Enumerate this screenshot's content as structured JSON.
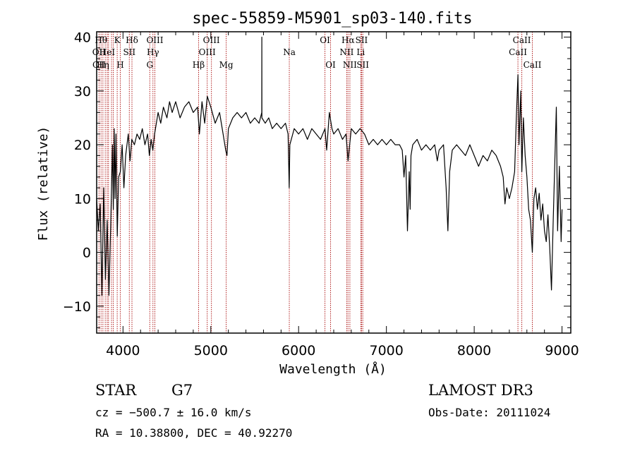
{
  "chart_data": {
    "type": "line",
    "title": "spec-55859-M5901_sp03-140.fits",
    "xlabel": "Wavelength (Å)",
    "ylabel": "Flux (relative)",
    "xlim": [
      3700,
      9100
    ],
    "ylim": [
      -15,
      41
    ],
    "xticks": [
      4000,
      5000,
      6000,
      7000,
      8000,
      9000
    ],
    "yticks": [
      -10,
      0,
      10,
      20,
      30,
      40
    ],
    "ytick_labels": [
      "−10",
      "0",
      "10",
      "20",
      "30",
      "40"
    ],
    "series": [
      {
        "name": "flux",
        "points": [
          [
            3700,
            10
          ],
          [
            3720,
            4
          ],
          [
            3740,
            9
          ],
          [
            3760,
            -8
          ],
          [
            3780,
            12
          ],
          [
            3800,
            -5
          ],
          [
            3820,
            6
          ],
          [
            3840,
            -8
          ],
          [
            3860,
            5
          ],
          [
            3880,
            20
          ],
          [
            3890,
            8
          ],
          [
            3900,
            23
          ],
          [
            3910,
            10
          ],
          [
            3920,
            22
          ],
          [
            3935,
            3
          ],
          [
            3950,
            14
          ],
          [
            3970,
            15
          ],
          [
            3990,
            20
          ],
          [
            4010,
            12
          ],
          [
            4030,
            18
          ],
          [
            4060,
            22
          ],
          [
            4080,
            17
          ],
          [
            4100,
            21
          ],
          [
            4130,
            20
          ],
          [
            4160,
            22
          ],
          [
            4190,
            21
          ],
          [
            4220,
            23
          ],
          [
            4250,
            20
          ],
          [
            4280,
            22
          ],
          [
            4300,
            18
          ],
          [
            4320,
            21
          ],
          [
            4340,
            19
          ],
          [
            4360,
            22
          ],
          [
            4380,
            24
          ],
          [
            4400,
            26
          ],
          [
            4430,
            24
          ],
          [
            4460,
            27
          ],
          [
            4500,
            25
          ],
          [
            4530,
            28
          ],
          [
            4560,
            26
          ],
          [
            4600,
            28
          ],
          [
            4650,
            25
          ],
          [
            4700,
            27
          ],
          [
            4750,
            28
          ],
          [
            4800,
            26
          ],
          [
            4850,
            27
          ],
          [
            4870,
            22
          ],
          [
            4900,
            28
          ],
          [
            4930,
            24
          ],
          [
            4960,
            29
          ],
          [
            5000,
            27
          ],
          [
            5050,
            24
          ],
          [
            5100,
            26
          ],
          [
            5140,
            22
          ],
          [
            5170,
            19
          ],
          [
            5184,
            18
          ],
          [
            5200,
            23
          ],
          [
            5250,
            25
          ],
          [
            5300,
            26
          ],
          [
            5350,
            25
          ],
          [
            5400,
            26
          ],
          [
            5450,
            24
          ],
          [
            5500,
            25
          ],
          [
            5550,
            24
          ],
          [
            5580,
            26
          ],
          [
            5581,
            40
          ],
          [
            5582,
            25
          ],
          [
            5620,
            24
          ],
          [
            5660,
            25
          ],
          [
            5700,
            23
          ],
          [
            5750,
            24
          ],
          [
            5800,
            23
          ],
          [
            5850,
            24
          ],
          [
            5880,
            22
          ],
          [
            5893,
            12
          ],
          [
            5900,
            20
          ],
          [
            5950,
            23
          ],
          [
            6000,
            22
          ],
          [
            6050,
            23
          ],
          [
            6100,
            21
          ],
          [
            6150,
            23
          ],
          [
            6200,
            22
          ],
          [
            6250,
            21
          ],
          [
            6300,
            23
          ],
          [
            6320,
            19
          ],
          [
            6350,
            26
          ],
          [
            6380,
            23
          ],
          [
            6400,
            22
          ],
          [
            6450,
            23
          ],
          [
            6500,
            21
          ],
          [
            6540,
            22
          ],
          [
            6563,
            17
          ],
          [
            6600,
            23
          ],
          [
            6650,
            22
          ],
          [
            6700,
            23
          ],
          [
            6750,
            22
          ],
          [
            6800,
            20
          ],
          [
            6850,
            21
          ],
          [
            6900,
            20
          ],
          [
            6950,
            21
          ],
          [
            7000,
            20
          ],
          [
            7050,
            21
          ],
          [
            7100,
            20
          ],
          [
            7150,
            20
          ],
          [
            7180,
            19
          ],
          [
            7200,
            14
          ],
          [
            7220,
            18
          ],
          [
            7240,
            4
          ],
          [
            7260,
            15
          ],
          [
            7270,
            8
          ],
          [
            7280,
            18
          ],
          [
            7300,
            20
          ],
          [
            7350,
            21
          ],
          [
            7400,
            19
          ],
          [
            7450,
            20
          ],
          [
            7500,
            19
          ],
          [
            7550,
            20
          ],
          [
            7580,
            17
          ],
          [
            7600,
            19
          ],
          [
            7650,
            20
          ],
          [
            7680,
            12
          ],
          [
            7700,
            4
          ],
          [
            7720,
            15
          ],
          [
            7750,
            19
          ],
          [
            7800,
            20
          ],
          [
            7850,
            19
          ],
          [
            7900,
            18
          ],
          [
            7950,
            20
          ],
          [
            8000,
            18
          ],
          [
            8050,
            16
          ],
          [
            8100,
            18
          ],
          [
            8150,
            17
          ],
          [
            8200,
            19
          ],
          [
            8250,
            18
          ],
          [
            8300,
            16
          ],
          [
            8330,
            14
          ],
          [
            8350,
            9
          ],
          [
            8370,
            12
          ],
          [
            8400,
            10
          ],
          [
            8430,
            12
          ],
          [
            8460,
            15
          ],
          [
            8480,
            25
          ],
          [
            8498,
            33
          ],
          [
            8510,
            20
          ],
          [
            8530,
            30
          ],
          [
            8542,
            15
          ],
          [
            8560,
            25
          ],
          [
            8580,
            18
          ],
          [
            8600,
            14
          ],
          [
            8620,
            8
          ],
          [
            8640,
            6
          ],
          [
            8662,
            0
          ],
          [
            8680,
            10
          ],
          [
            8700,
            12
          ],
          [
            8720,
            8
          ],
          [
            8740,
            11
          ],
          [
            8760,
            6
          ],
          [
            8780,
            9
          ],
          [
            8800,
            4
          ],
          [
            8820,
            2
          ],
          [
            8840,
            7
          ],
          [
            8860,
            1
          ],
          [
            8880,
            -7
          ],
          [
            8900,
            6
          ],
          [
            8920,
            18
          ],
          [
            8935,
            27
          ],
          [
            8950,
            4
          ],
          [
            8970,
            16
          ],
          [
            8990,
            2
          ],
          [
            9000,
            8
          ]
        ]
      }
    ],
    "lines": [
      {
        "wl": 3727,
        "label": "OII",
        "row": 1
      },
      {
        "wl": 3750,
        "label": "Hθ",
        "row": 0
      },
      {
        "wl": 3771,
        "label": "Hη",
        "row": 2
      },
      {
        "wl": 3798,
        "label": "",
        "row": 2
      },
      {
        "wl": 3820,
        "label": "HeI",
        "row": 1
      },
      {
        "wl": 3835,
        "label": "",
        "row": 2
      },
      {
        "wl": 3869,
        "label": "",
        "row": 2
      },
      {
        "wl": 3889,
        "label": "",
        "row": 1
      },
      {
        "wl": 3934,
        "label": "K",
        "row": 0
      },
      {
        "wl": 3969,
        "label": "H",
        "row": 2
      },
      {
        "wl": 4072,
        "label": "SII",
        "row": 1
      },
      {
        "wl": 4102,
        "label": "Hδ",
        "row": 0
      },
      {
        "wl": 4305,
        "label": "G",
        "row": 2
      },
      {
        "wl": 4341,
        "label": "Hγ",
        "row": 1
      },
      {
        "wl": 4363,
        "label": "OIII",
        "row": 0
      },
      {
        "wl": 4861,
        "label": "Hβ",
        "row": 2
      },
      {
        "wl": 4959,
        "label": "OIII",
        "row": 1
      },
      {
        "wl": 5007,
        "label": "OIII",
        "row": 0
      },
      {
        "wl": 5175,
        "label": "Mg",
        "row": 2
      },
      {
        "wl": 5894,
        "label": "Na",
        "row": 1
      },
      {
        "wl": 6300,
        "label": "OI",
        "row": 0
      },
      {
        "wl": 6364,
        "label": "OI",
        "row": 2
      },
      {
        "wl": 6548,
        "label": "NII",
        "row": 1
      },
      {
        "wl": 6563,
        "label": "Hα",
        "row": 0
      },
      {
        "wl": 6584,
        "label": "NII",
        "row": 2
      },
      {
        "wl": 6708,
        "label": "Li",
        "row": 1
      },
      {
        "wl": 6717,
        "label": "SII",
        "row": 0
      },
      {
        "wl": 6731,
        "label": "SII",
        "row": 2
      },
      {
        "wl": 8498,
        "label": "CaII",
        "row": 1
      },
      {
        "wl": 8542,
        "label": "CaII",
        "row": 0
      },
      {
        "wl": 8662,
        "label": "CaII",
        "row": 2
      }
    ],
    "extra_labels": [
      {
        "wl": 3727,
        "label": "CII",
        "row": 2
      }
    ]
  },
  "info": {
    "class": "STAR",
    "subclass": "G7",
    "survey": "LAMOST DR3",
    "cz": "cz = −500.7 ± 16.0 km/s",
    "obs_date": "Obs-Date: 20111024",
    "coords": "RA =  10.38800, DEC =  40.92270"
  }
}
